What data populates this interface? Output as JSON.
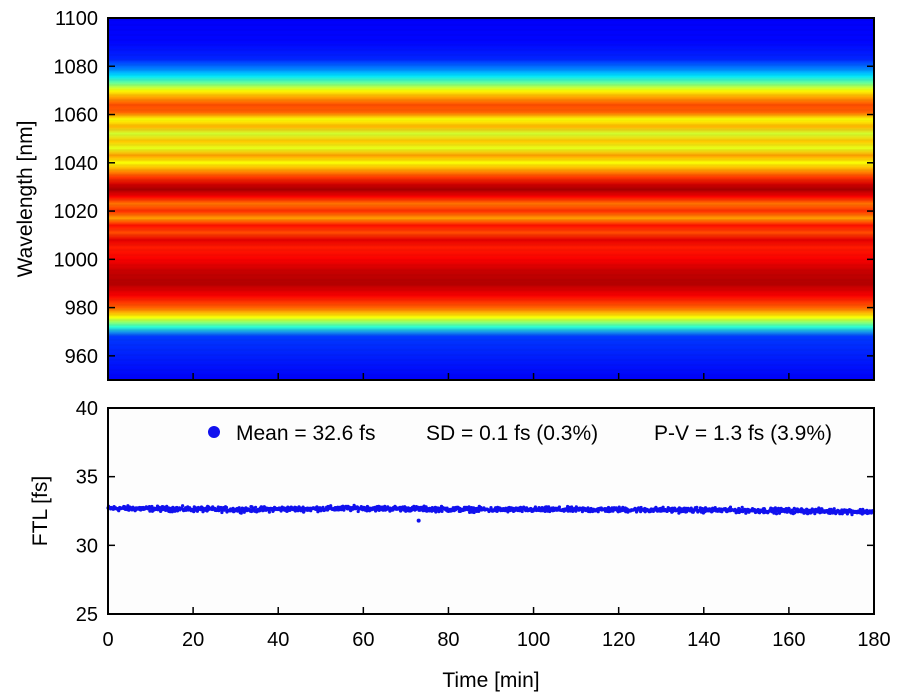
{
  "chart_data": [
    {
      "type": "heatmap",
      "ylabel": "Wavelength [nm]",
      "xlim": [
        0,
        180
      ],
      "ylim": [
        950,
        1100
      ],
      "yticks": [
        960,
        980,
        1000,
        1020,
        1040,
        1060,
        1080,
        1100
      ],
      "colormap": "jet",
      "description_values": {
        "wavelength_nm": [
          950,
          968,
          972,
          976,
          980,
          985,
          990,
          995,
          1000,
          1005,
          1008,
          1011,
          1014,
          1017,
          1020,
          1023,
          1026,
          1029,
          1031,
          1034,
          1037,
          1040,
          1043,
          1046,
          1049,
          1052,
          1055,
          1058,
          1061,
          1064,
          1067,
          1070,
          1073,
          1076,
          1079,
          1083,
          1090,
          1100
        ],
        "intensity": [
          0.12,
          0.18,
          0.42,
          0.62,
          0.78,
          0.88,
          0.95,
          0.93,
          0.88,
          0.85,
          0.9,
          0.8,
          0.86,
          0.72,
          0.83,
          0.76,
          0.88,
          0.96,
          0.92,
          0.82,
          0.72,
          0.62,
          0.72,
          0.6,
          0.68,
          0.58,
          0.7,
          0.62,
          0.78,
          0.8,
          0.72,
          0.62,
          0.48,
          0.35,
          0.25,
          0.16,
          0.13,
          0.12
        ]
      }
    },
    {
      "type": "scatter",
      "xlabel": "Time [min]",
      "ylabel": "FTL [fs]",
      "xlim": [
        0,
        180
      ],
      "ylim": [
        25,
        40
      ],
      "xticks": [
        0,
        20,
        40,
        60,
        80,
        100,
        120,
        140,
        160,
        180
      ],
      "yticks": [
        25,
        30,
        35,
        40
      ],
      "series": [
        {
          "name": "Mean = 32.6 fs",
          "color": "#1111ee",
          "trend": {
            "x": [
              0,
              30,
              60,
              90,
              120,
              150,
              180
            ],
            "y": [
              32.7,
              32.6,
              32.7,
              32.6,
              32.6,
              32.55,
              32.45
            ]
          },
          "outliers": [
            {
              "x": 73,
              "y": 31.8
            }
          ]
        }
      ],
      "legend": {
        "mean": "Mean = 32.6 fs",
        "sd": "SD = 0.1 fs (0.3%)",
        "pv": "P-V = 1.3 fs (3.9%)",
        "placement": "top"
      }
    }
  ]
}
